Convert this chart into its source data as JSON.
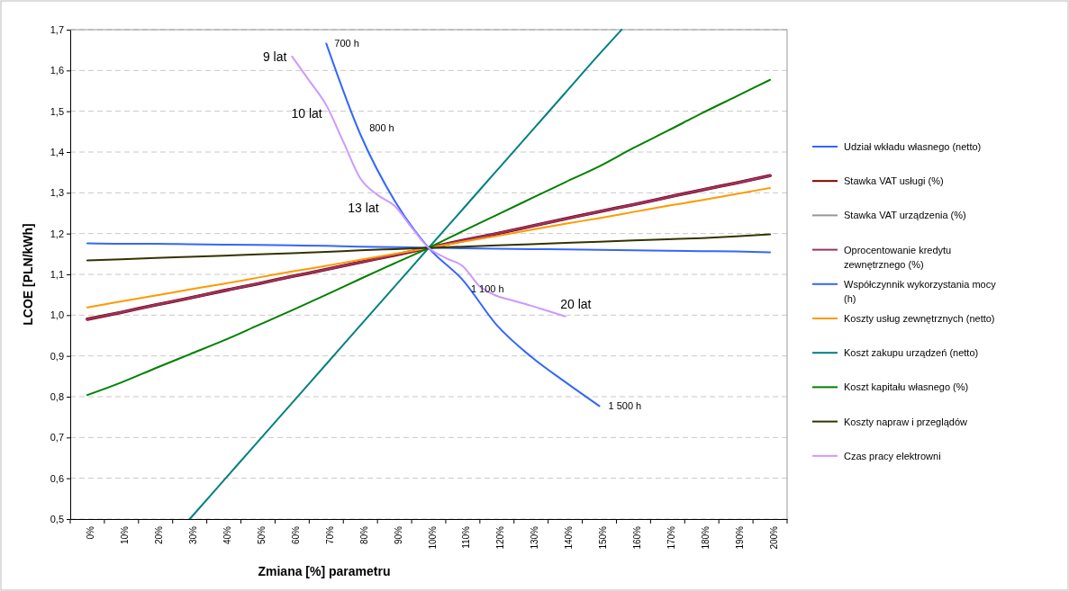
{
  "chart_data": {
    "type": "line",
    "xlabel": "Zmiana [%] parametru",
    "ylabel": "LCOE [PLN/kWh]",
    "x": [
      0,
      10,
      20,
      30,
      40,
      50,
      60,
      70,
      80,
      90,
      100,
      110,
      120,
      130,
      140,
      150,
      160,
      170,
      180,
      190,
      200
    ],
    "xlim": [
      -5,
      205
    ],
    "xticks": [
      {
        "value": 0,
        "label": "0%"
      },
      {
        "value": 10,
        "label": "10%"
      },
      {
        "value": 20,
        "label": "20%"
      },
      {
        "value": 30,
        "label": "30%"
      },
      {
        "value": 40,
        "label": "40%"
      },
      {
        "value": 50,
        "label": "50%"
      },
      {
        "value": 60,
        "label": "60%"
      },
      {
        "value": 70,
        "label": "70%"
      },
      {
        "value": 80,
        "label": "80%"
      },
      {
        "value": 90,
        "label": "90%"
      },
      {
        "value": 100,
        "label": "100%"
      },
      {
        "value": 110,
        "label": "110%"
      },
      {
        "value": 120,
        "label": "120%"
      },
      {
        "value": 130,
        "label": "130%"
      },
      {
        "value": 140,
        "label": "140%"
      },
      {
        "value": 150,
        "label": "150%"
      },
      {
        "value": 160,
        "label": "160%"
      },
      {
        "value": 170,
        "label": "170%"
      },
      {
        "value": 180,
        "label": "180%"
      },
      {
        "value": 190,
        "label": "190%"
      },
      {
        "value": 200,
        "label": "200%"
      }
    ],
    "ylim": [
      0.5,
      1.7
    ],
    "yticks": [
      {
        "value": 0.5,
        "label": "0,5"
      },
      {
        "value": 0.6,
        "label": "0,6"
      },
      {
        "value": 0.7,
        "label": "0,7"
      },
      {
        "value": 0.8,
        "label": "0,8"
      },
      {
        "value": 0.9,
        "label": "0,9"
      },
      {
        "value": 1.0,
        "label": "1,0"
      },
      {
        "value": 1.1,
        "label": "1,1"
      },
      {
        "value": 1.2,
        "label": "1,2"
      },
      {
        "value": 1.3,
        "label": "1,3"
      },
      {
        "value": 1.4,
        "label": "1,4"
      },
      {
        "value": 1.5,
        "label": "1,5"
      },
      {
        "value": 1.6,
        "label": "1,6"
      },
      {
        "value": 1.7,
        "label": "1,7"
      }
    ],
    "grid": "y",
    "legend": "right",
    "marker": "none",
    "line_style": "solid",
    "series": [
      {
        "name": "Udział wkładu własnego (netto)",
        "color": "#3366ff",
        "values": [
          1.176,
          1.175,
          1.175,
          1.174,
          1.173,
          1.172,
          1.171,
          1.17,
          1.168,
          1.167,
          1.165,
          1.164,
          1.163,
          1.162,
          1.161,
          1.16,
          1.159,
          1.158,
          1.157,
          1.156,
          1.154
        ]
      },
      {
        "name": "Stawka VAT usługi (%)",
        "color": "#800000",
        "values": [
          0.99,
          1.007,
          1.025,
          1.042,
          1.06,
          1.077,
          1.095,
          1.112,
          1.13,
          1.147,
          1.165,
          1.183,
          1.2,
          1.218,
          1.236,
          1.254,
          1.271,
          1.289,
          1.307,
          1.324,
          1.342
        ]
      },
      {
        "name": "Stawka VAT urządzenia (%)",
        "color": "#969696",
        "values": [
          null,
          null,
          null,
          null,
          null,
          null,
          null,
          null,
          null,
          null,
          null,
          null,
          null,
          null,
          null,
          null,
          null,
          null,
          null,
          null,
          null
        ]
      },
      {
        "name": "Oprocentowanie kredytu zewnętrznego (%)",
        "color": "#993366",
        "values": [
          0.99,
          1.007,
          1.025,
          1.042,
          1.06,
          1.077,
          1.095,
          1.112,
          1.13,
          1.147,
          1.165,
          1.183,
          1.2,
          1.218,
          1.236,
          1.254,
          1.271,
          1.289,
          1.307,
          1.324,
          1.342
        ]
      },
      {
        "name": "Współczynnik wykorzystania mocy (h)",
        "color": "#3366ff",
        "x": [
          70,
          80,
          90,
          100,
          110,
          120,
          130,
          140,
          150
        ],
        "values": [
          1.666,
          1.443,
          1.281,
          1.165,
          1.086,
          0.975,
          0.898,
          0.836,
          0.777
        ]
      },
      {
        "name": "Koszty usług zewnętrznych (netto)",
        "color": "#ff9900",
        "values": [
          1.019,
          1.034,
          1.048,
          1.063,
          1.077,
          1.092,
          1.107,
          1.121,
          1.136,
          1.15,
          1.165,
          1.18,
          1.194,
          1.209,
          1.224,
          1.238,
          1.253,
          1.268,
          1.282,
          1.297,
          1.312
        ]
      },
      {
        "name": "Koszt zakupu urządzeń (netto)",
        "color": "#008080",
        "x": [
          30,
          40,
          50,
          60,
          70,
          80,
          90,
          100,
          110,
          120,
          130,
          140,
          150,
          156.5
        ],
        "values": [
          0.5,
          0.595,
          0.69,
          0.785,
          0.88,
          0.975,
          1.07,
          1.165,
          1.26,
          1.355,
          1.45,
          1.545,
          1.64,
          1.7
        ]
      },
      {
        "name": "Koszt kapitału własnego (%)",
        "color": "#008000",
        "values": [
          0.804,
          0.835,
          0.87,
          0.904,
          0.938,
          0.975,
          1.012,
          1.05,
          1.089,
          1.127,
          1.165,
          1.206,
          1.246,
          1.286,
          1.326,
          1.365,
          1.41,
          1.452,
          1.495,
          1.536,
          1.577
        ]
      },
      {
        "name": "Koszty napraw i przeglądów",
        "color": "#333300",
        "values": [
          1.134,
          1.137,
          1.14,
          1.143,
          1.146,
          1.149,
          1.152,
          1.155,
          1.159,
          1.162,
          1.165,
          1.168,
          1.171,
          1.174,
          1.177,
          1.18,
          1.183,
          1.186,
          1.189,
          1.193,
          1.198
        ]
      },
      {
        "name": "Czas pracy elektrowni",
        "color": "#cc99ff",
        "x": [
          60,
          65,
          70,
          75,
          80,
          85,
          90,
          95,
          100,
          105,
          110,
          115,
          120,
          125,
          130,
          135,
          140
        ],
        "values": [
          1.634,
          1.575,
          1.515,
          1.425,
          1.335,
          1.295,
          1.268,
          1.215,
          1.165,
          1.14,
          1.12,
          1.07,
          1.047,
          1.035,
          1.023,
          1.01,
          0.997
        ]
      }
    ],
    "annotations": [
      {
        "text": "9 lat",
        "x": 60,
        "y": 1.634
      },
      {
        "text": "10 lat",
        "x": 66.7,
        "y": 1.555
      },
      {
        "text": "13 lat",
        "x": 86.7,
        "y": 1.29
      },
      {
        "text": "20 lat",
        "x": 133.3,
        "y": 1.015
      },
      {
        "text": "700 h",
        "x": 70,
        "y": 1.666
      },
      {
        "text": "800 h",
        "x": 80,
        "y": 1.443
      },
      {
        "text": "1 100 h",
        "x": 110,
        "y": 1.086
      },
      {
        "text": "1 500 h",
        "x": 150,
        "y": 0.777
      }
    ]
  }
}
